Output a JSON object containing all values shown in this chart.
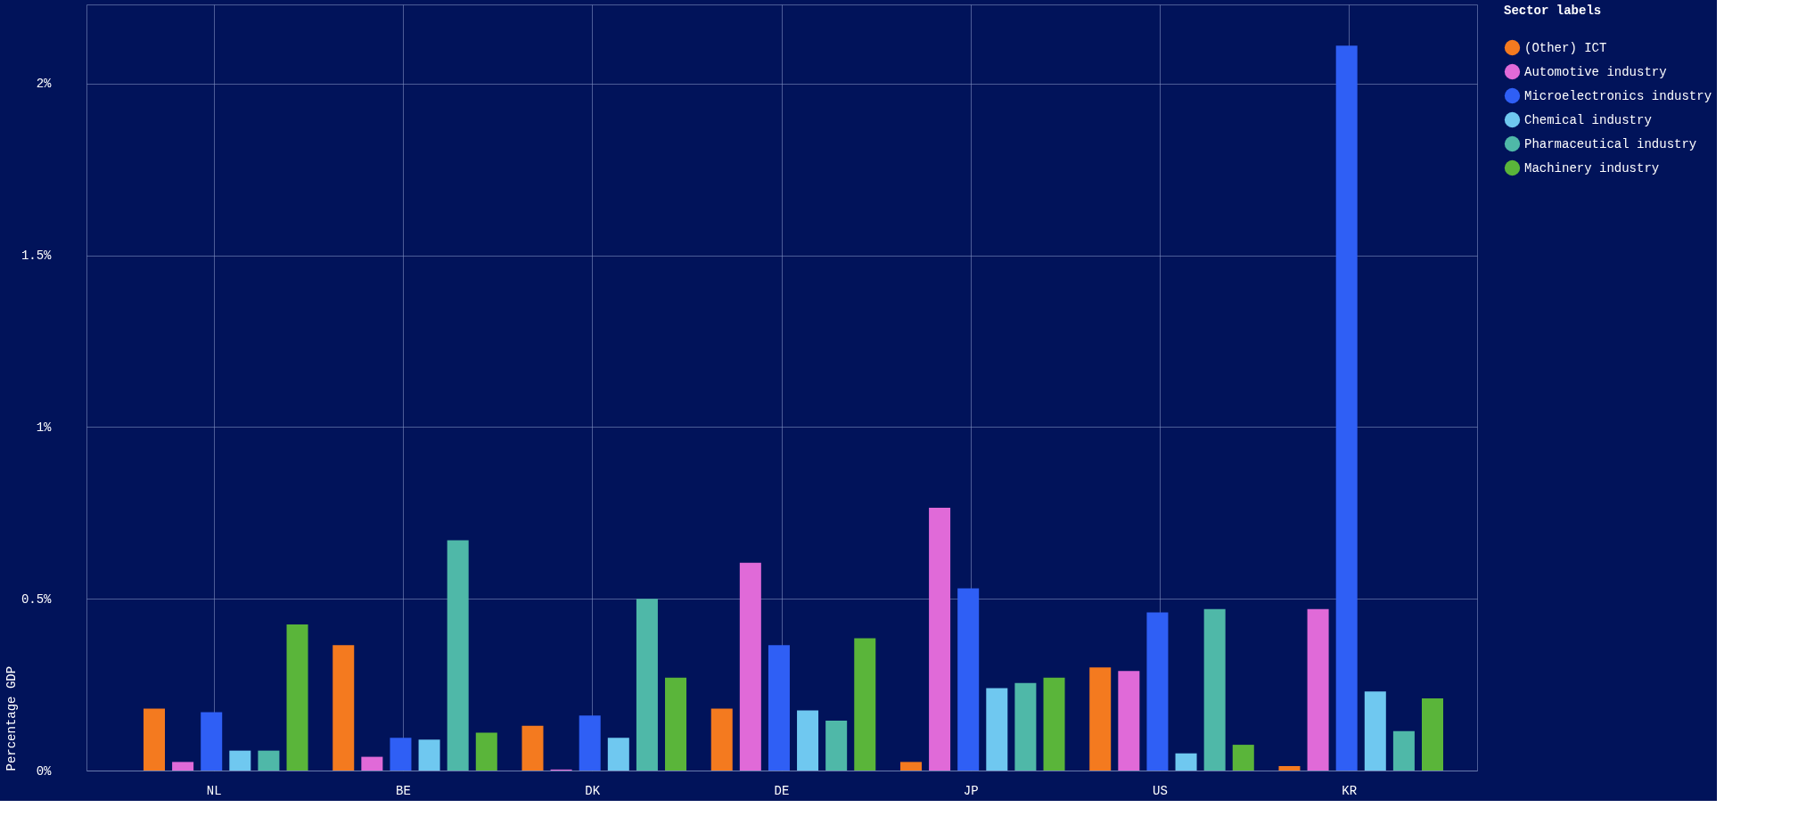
{
  "chart_data": {
    "type": "bar",
    "ylabel": "Percentage GDP",
    "legend_title": "Sector labels",
    "categories": [
      "NL",
      "BE",
      "DK",
      "DE",
      "JP",
      "US",
      "KR"
    ],
    "series": [
      {
        "name": "(Other) ICT",
        "color": "#f47a1f",
        "values": [
          0.18,
          0.365,
          0.13,
          0.18,
          0.025,
          0.3,
          0.013
        ]
      },
      {
        "name": "Automotive industry",
        "color": "#e06ad8",
        "values": [
          0.025,
          0.04,
          0.003,
          0.605,
          0.765,
          0.29,
          0.47
        ]
      },
      {
        "name": "Microelectronics industry",
        "color": "#2f5ff5",
        "values": [
          0.17,
          0.095,
          0.16,
          0.365,
          0.53,
          0.46,
          2.11
        ]
      },
      {
        "name": "Chemical industry",
        "color": "#6fc8f0",
        "values": [
          0.058,
          0.09,
          0.095,
          0.175,
          0.24,
          0.05,
          0.23
        ]
      },
      {
        "name": "Pharmaceutical industry",
        "color": "#4fb8a8",
        "values": [
          0.058,
          0.67,
          0.5,
          0.145,
          0.255,
          0.47,
          0.115
        ]
      },
      {
        "name": "Machinery industry",
        "color": "#5ab53a",
        "values": [
          0.425,
          0.11,
          0.27,
          0.385,
          0.27,
          0.075,
          0.21
        ]
      }
    ],
    "ylim": [
      0,
      2.23
    ],
    "yticks": [
      {
        "value": 0,
        "label": "0%"
      },
      {
        "value": 0.5,
        "label": "0.5%"
      },
      {
        "value": 1,
        "label": "1%"
      },
      {
        "value": 1.5,
        "label": "1.5%"
      },
      {
        "value": 2,
        "label": "2%"
      }
    ],
    "grid": true,
    "legend": "top right"
  }
}
